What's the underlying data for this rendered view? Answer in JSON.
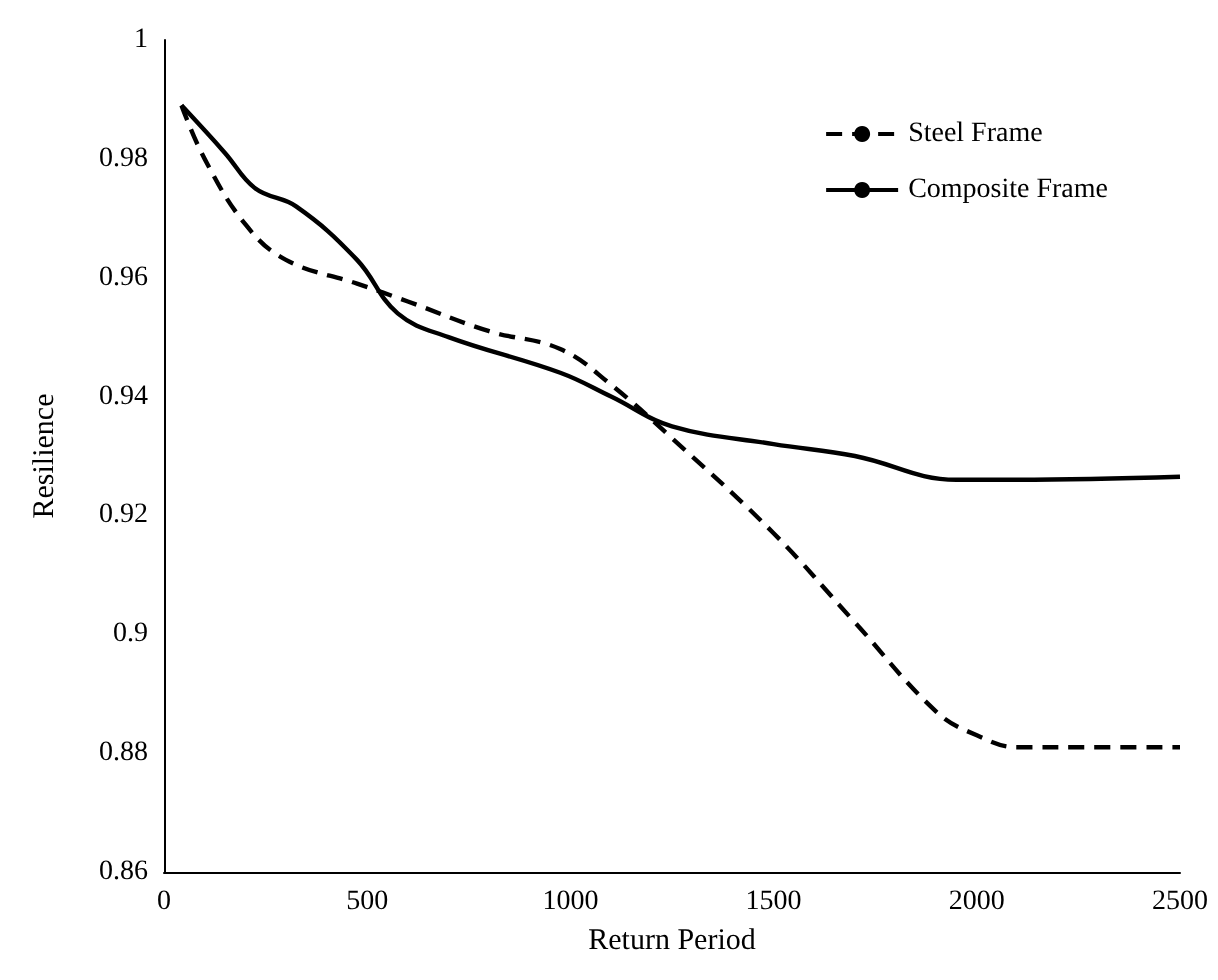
{
  "chart_data": {
    "type": "line",
    "xlabel": "Return Period",
    "ylabel": "Resilience",
    "xlim": [
      0,
      2500
    ],
    "xticks": [
      0,
      500,
      1000,
      1500,
      2000,
      2500
    ],
    "ylim": [
      0.86,
      1
    ],
    "yticks": [
      0.86,
      0.88,
      0.9,
      0.92,
      0.94,
      0.96,
      0.98,
      1
    ],
    "grid": false,
    "legend": "top right",
    "marker": "none",
    "series": [
      {
        "name": "Steel Frame",
        "color": "#000000",
        "line_style": "dashed",
        "x": [
          43,
          100,
          200,
          300,
          475,
          600,
          800,
          975,
          1100,
          1250,
          1500,
          1700,
          1900,
          2000,
          2100,
          2300,
          2500
        ],
        "values": [
          0.989,
          0.98,
          0.969,
          0.963,
          0.959,
          0.956,
          0.951,
          0.948,
          0.942,
          0.933,
          0.917,
          0.902,
          0.887,
          0.883,
          0.881,
          0.881,
          0.881
        ]
      },
      {
        "name": "Composite Frame",
        "color": "#000000",
        "line_style": "solid",
        "x": [
          43,
          150,
          225,
          325,
          475,
          575,
          700,
          975,
          1100,
          1250,
          1500,
          1700,
          1950,
          2100,
          2500
        ],
        "values": [
          0.989,
          0.981,
          0.975,
          0.972,
          0.963,
          0.954,
          0.95,
          0.944,
          0.94,
          0.935,
          0.932,
          0.93,
          0.926,
          0.926,
          0.9265
        ]
      }
    ]
  }
}
